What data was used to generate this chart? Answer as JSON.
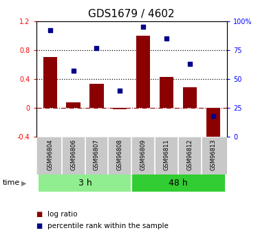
{
  "title": "GDS1679 / 4602",
  "samples": [
    "GSM96804",
    "GSM96806",
    "GSM96807",
    "GSM96808",
    "GSM96809",
    "GSM96811",
    "GSM96812",
    "GSM96813"
  ],
  "log_ratio": [
    0.7,
    0.07,
    0.33,
    -0.02,
    1.0,
    0.43,
    0.28,
    -0.5
  ],
  "pct_rank": [
    92,
    57,
    77,
    40,
    95,
    85,
    63,
    18
  ],
  "bar_color": "#8B0000",
  "dot_color": "#00008B",
  "ylim_left": [
    -0.4,
    1.2
  ],
  "ylim_right": [
    0,
    100
  ],
  "yticks_left": [
    -0.4,
    0.0,
    0.4,
    0.8,
    1.2
  ],
  "ytick_labels_left": [
    "-0.4",
    "0",
    "0.4",
    "0.8",
    "1.2"
  ],
  "yticks_right": [
    0,
    25,
    50,
    75,
    100
  ],
  "ytick_labels_right": [
    "0",
    "25",
    "50",
    "75",
    "100%"
  ],
  "hlines": [
    0.4,
    0.8
  ],
  "zero_line_y": 0.0,
  "groups": [
    {
      "label": "3 h",
      "start": 0,
      "end": 4,
      "color": "#90EE90"
    },
    {
      "label": "48 h",
      "start": 4,
      "end": 8,
      "color": "#32CD32"
    }
  ],
  "time_label": "time",
  "legend_bar": "log ratio",
  "legend_dot": "percentile rank within the sample",
  "bg_color": "#ffffff",
  "label_bg_color": "#C8C8C8",
  "zero_dash_color": "#8B0000",
  "title_fontsize": 11,
  "tick_fontsize": 7,
  "sample_fontsize": 6,
  "group_fontsize": 9,
  "legend_fontsize": 7.5
}
